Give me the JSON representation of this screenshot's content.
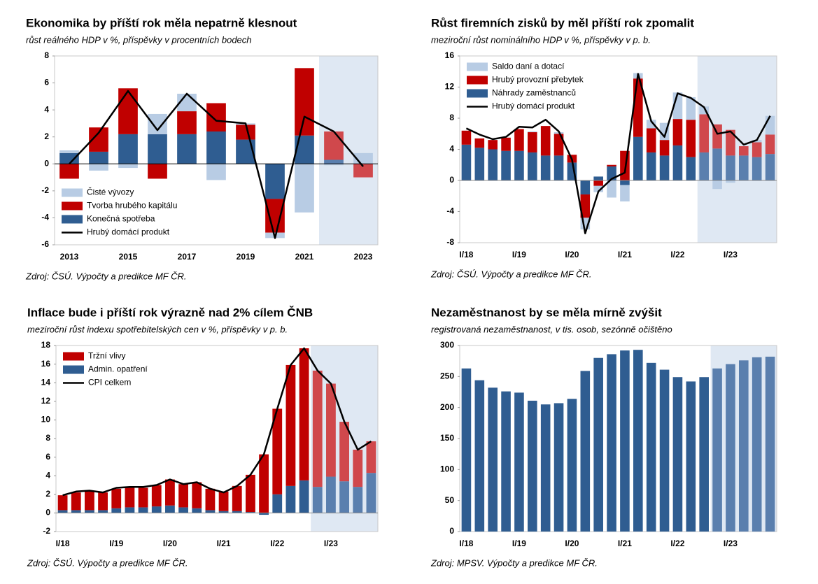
{
  "chart_data": [
    {
      "type": "bar",
      "title": "Ekonomika by příští rok měla nepatrně klesnout",
      "subtitle": "růst reálného HDP v %, příspěvky v procentních bodech",
      "source": "Zdroj: ČSÚ. Výpočty a predikce MF ČR.",
      "categories": [
        "2013",
        null,
        "2015",
        null,
        "2017",
        null,
        "2019",
        null,
        "2021",
        null,
        "2023"
      ],
      "ylim": [
        -6,
        8
      ],
      "yticks": [
        -6,
        -4,
        -2,
        0,
        2,
        4,
        6,
        8
      ],
      "legend": "lower left",
      "forecast_from_index": 9,
      "series": [
        {
          "name": "Čisté vývozy",
          "color": "#b8cce4",
          "forecast_color": "#b8cce4",
          "values": [
            0.2,
            -0.5,
            -0.3,
            1.5,
            1.3,
            -1.2,
            0.1,
            -0.4,
            -3.6,
            -0.1,
            0.8
          ]
        },
        {
          "name": "Tvorba hrubého kapitálu",
          "color": "#c00000",
          "forecast_color": "#d0484c",
          "values": [
            -1.1,
            1.8,
            3.4,
            -1.1,
            1.7,
            2.1,
            1.1,
            -2.5,
            5.0,
            2.1,
            -1.0
          ]
        },
        {
          "name": "Konečná spotřeba",
          "color": "#2f5d91",
          "forecast_color": "#5a7fae",
          "values": [
            0.8,
            0.9,
            2.2,
            2.2,
            2.2,
            2.4,
            1.8,
            -2.6,
            2.1,
            0.3,
            0.0
          ]
        },
        {
          "name": "Hrubý domácí produkt",
          "type": "line",
          "color": "#000000",
          "values": [
            0.0,
            2.3,
            5.4,
            2.5,
            5.2,
            3.2,
            3.0,
            -5.5,
            3.5,
            2.4,
            -0.2
          ]
        }
      ]
    },
    {
      "type": "bar",
      "title": "Růst firemních zisků by měl příští rok zpomalit",
      "subtitle": "meziroční růst nominálního HDP v %, příspěvky v p. b.",
      "source": "Zdroj: ČSÚ. Výpočty a predikce MF ČR.",
      "categories": [
        "I/18",
        null,
        null,
        null,
        "I/19",
        null,
        null,
        null,
        "I/20",
        null,
        null,
        null,
        "I/21",
        null,
        null,
        null,
        "I/22",
        null,
        null,
        null,
        "I/23",
        null,
        null,
        null
      ],
      "ylim": [
        -8,
        16
      ],
      "yticks": [
        -8,
        -4,
        0,
        4,
        8,
        12,
        16
      ],
      "legend": "upper left",
      "forecast_from_index": 18,
      "series": [
        {
          "name": "Saldo daní a dotací",
          "color": "#b8cce4",
          "forecast_color": "#b8cce4",
          "values": [
            0,
            0,
            0,
            0,
            0,
            0.1,
            0,
            0.2,
            0,
            -1.5,
            -0.8,
            -2.2,
            -2.1,
            0.7,
            1.1,
            2.2,
            3.4,
            2.9,
            1.0,
            -1.1,
            -0.3,
            0,
            0.3,
            2.4
          ]
        },
        {
          "name": "Hrubý provozní přebytek",
          "color": "#c00000",
          "forecast_color": "#d0484c",
          "values": [
            1.8,
            1.2,
            1.2,
            1.7,
            2.8,
            2.6,
            3.8,
            2.8,
            1.0,
            -3.0,
            -0.7,
            0.2,
            3.8,
            7.5,
            3.1,
            2.0,
            3.4,
            4.8,
            4.9,
            3.1,
            3.3,
            1.2,
            1.9,
            2.5
          ]
        },
        {
          "name": "Náhrady zaměstnanců",
          "color": "#2f5d91",
          "forecast_color": "#5a7fae",
          "values": [
            4.6,
            4.2,
            4.0,
            3.8,
            3.8,
            3.6,
            3.2,
            3.2,
            2.3,
            -1.8,
            0.5,
            1.8,
            -0.6,
            5.6,
            3.6,
            3.2,
            4.5,
            3.0,
            3.6,
            4.1,
            3.2,
            3.2,
            3.0,
            3.4
          ]
        },
        {
          "name": "Hrubý domácí produkt",
          "type": "line",
          "color": "#000000",
          "values": [
            6.7,
            5.9,
            5.3,
            5.6,
            6.9,
            6.8,
            7.8,
            6.3,
            2.7,
            -6.8,
            -1.4,
            0.2,
            1.0,
            13.7,
            7.6,
            5.6,
            11.2,
            10.6,
            9.4,
            6.0,
            6.3,
            4.6,
            5.2,
            8.3
          ]
        }
      ]
    },
    {
      "type": "bar",
      "title": "Inflace bude i příští rok výrazně nad 2% cílem ČNB",
      "subtitle": "meziroční růst indexu spotřebitelských cen v %, příspěvky v p. b.",
      "source": "Zdroj: ČSÚ. Výpočty a predikce MF ČR.",
      "categories": [
        "I/18",
        null,
        null,
        null,
        "I/19",
        null,
        null,
        null,
        "I/20",
        null,
        null,
        null,
        "I/21",
        null,
        null,
        null,
        "I/22",
        null,
        null,
        null,
        "I/23",
        null,
        null,
        null
      ],
      "ylim": [
        -2,
        18
      ],
      "yticks": [
        -2,
        0,
        2,
        4,
        6,
        8,
        10,
        12,
        14,
        16,
        18
      ],
      "legend": "upper left",
      "forecast_from_index": 19,
      "series": [
        {
          "name": "Tržní vlivy",
          "color": "#c00000",
          "forecast_color": "#d0484c",
          "values": [
            1.6,
            1.9,
            2.1,
            1.9,
            2.1,
            2.2,
            2.1,
            2.3,
            2.8,
            2.5,
            2.8,
            2.3,
            2.1,
            2.7,
            4.0,
            6.3,
            9.2,
            13.0,
            14.2,
            12.5,
            10.0,
            6.4,
            4.0,
            3.4
          ]
        },
        {
          "name": "Admin. opatření",
          "color": "#2f5d91",
          "forecast_color": "#5a7fae",
          "values": [
            0.3,
            0.3,
            0.3,
            0.3,
            0.5,
            0.6,
            0.6,
            0.7,
            0.8,
            0.6,
            0.5,
            0.3,
            0.2,
            0.2,
            0.1,
            -0.2,
            2.0,
            2.9,
            3.5,
            2.8,
            3.9,
            3.4,
            2.8,
            4.3
          ]
        },
        {
          "name": "CPI celkem",
          "type": "line",
          "color": "#000000",
          "values": [
            1.9,
            2.3,
            2.4,
            2.2,
            2.7,
            2.8,
            2.8,
            3.0,
            3.6,
            3.1,
            3.3,
            2.6,
            2.2,
            2.9,
            4.1,
            6.3,
            11.2,
            15.9,
            17.7,
            15.3,
            13.9,
            9.8,
            6.8,
            7.7
          ]
        }
      ]
    },
    {
      "type": "bar",
      "title": "Nezaměstnanost by se měla mírně zvýšit",
      "subtitle": "registrovaná nezaměstnanost, v tis. osob, sezónně očištěno",
      "source": "Zdroj: MPSV. Výpočty a predikce MF ČR.",
      "categories": [
        "I/18",
        null,
        null,
        null,
        "I/19",
        null,
        null,
        null,
        "I/20",
        null,
        null,
        null,
        "I/21",
        null,
        null,
        null,
        "I/22",
        null,
        null,
        null,
        "I/23",
        null,
        null,
        null
      ],
      "ylim": [
        0,
        300
      ],
      "yticks": [
        0,
        50,
        100,
        150,
        200,
        250,
        300
      ],
      "forecast_from_index": 19,
      "series": [
        {
          "color": "#2f5d91",
          "forecast_color": "#5a7fae",
          "values": [
            263,
            244,
            232,
            226,
            224,
            211,
            205,
            207,
            214,
            259,
            280,
            286,
            292,
            293,
            272,
            261,
            249,
            242,
            249,
            263,
            270,
            276,
            281,
            282
          ]
        }
      ]
    }
  ]
}
